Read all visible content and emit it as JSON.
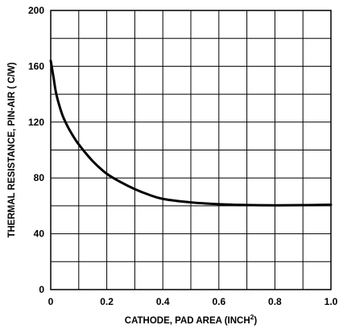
{
  "chart_data": {
    "type": "line",
    "xlabel": "CATHODE, PAD AREA (INCH",
    "xlabel_sup": "2",
    "xlabel_tail": ")",
    "ylabel": "THERMAL RESISTANCE, PIN-AIR ( C/W)",
    "xlim": [
      0,
      1.0
    ],
    "ylim": [
      0,
      200
    ],
    "x_ticks": [
      0,
      0.2,
      0.4,
      0.6,
      0.8,
      1.0
    ],
    "x_tick_labels": [
      "0",
      "0.2",
      "0.4",
      "0.6",
      "0.8",
      "1.0"
    ],
    "y_ticks": [
      0,
      40,
      80,
      120,
      160,
      200
    ],
    "y_tick_labels": [
      "0",
      "40",
      "80",
      "120",
      "160",
      "200"
    ],
    "grid": true,
    "x_grid_step": 0.1,
    "y_grid_step": 20,
    "line_color": "#000000",
    "series": [
      {
        "x": [
          0,
          0.01,
          0.02,
          0.04,
          0.06,
          0.08,
          0.1,
          0.15,
          0.2,
          0.25,
          0.3,
          0.35,
          0.4,
          0.5,
          0.6,
          0.7,
          0.8,
          0.9,
          1.0
        ],
        "y": [
          164,
          152,
          140,
          126,
          117,
          110,
          104,
          92,
          83,
          77,
          72,
          68,
          65,
          62.5,
          61.2,
          60.6,
          60.4,
          60.5,
          60.8
        ]
      }
    ]
  }
}
